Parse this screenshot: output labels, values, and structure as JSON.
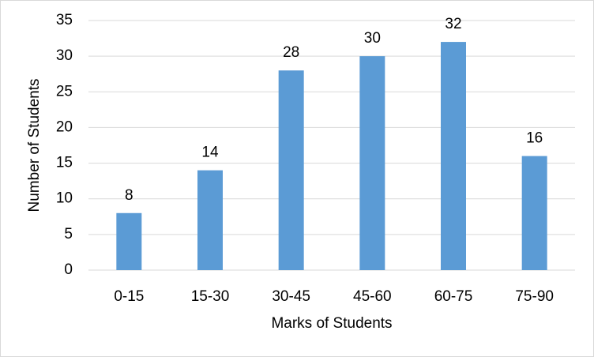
{
  "chart_data": {
    "type": "bar",
    "x_label": "Marks of Students",
    "y_label": "Number of Students",
    "categories": [
      "0-15",
      "15-30",
      "30-45",
      "45-60",
      "60-75",
      "75-90"
    ],
    "values": [
      8,
      14,
      28,
      30,
      32,
      16
    ],
    "color": "#5b9bd5",
    "ylim": [
      0,
      35
    ],
    "yticks": [
      0,
      5,
      10,
      15,
      20,
      25,
      30,
      35
    ],
    "grid": true
  }
}
